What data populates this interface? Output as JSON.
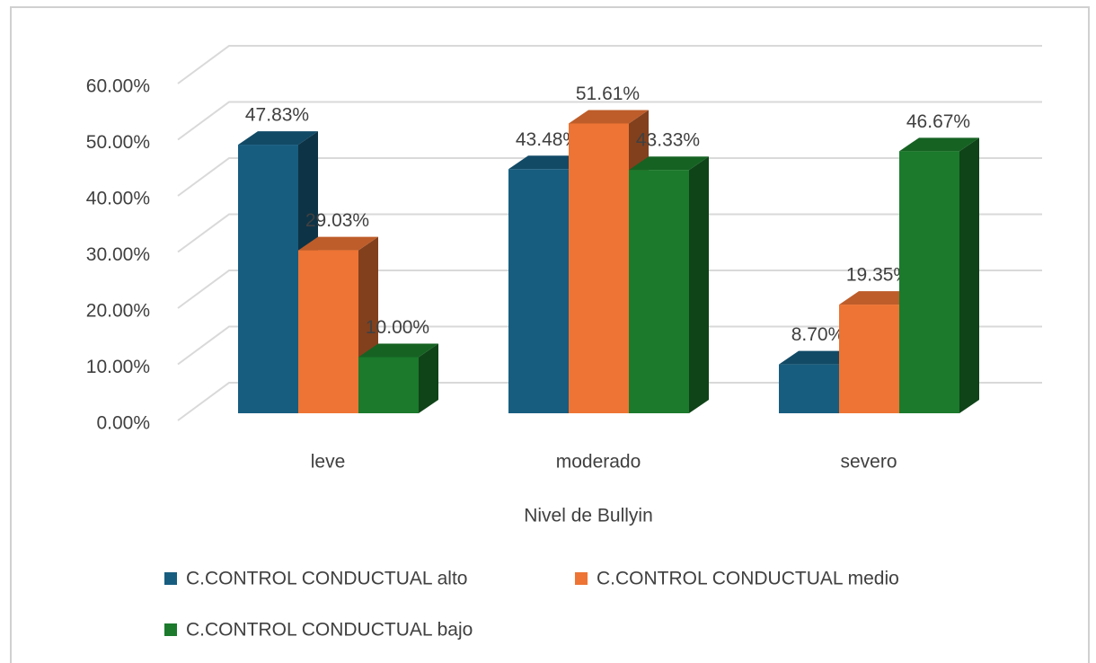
{
  "chart_data": {
    "type": "bar3d",
    "x_label": "Nivel de Bullyin",
    "categories": [
      "leve",
      "moderado",
      "severo"
    ],
    "series": [
      {
        "name": "C.CONTROL CONDUCTUAL alto",
        "color": "#175d80",
        "values": [
          47.83,
          43.48,
          8.7
        ],
        "value_labels": [
          "47.83%",
          "43.48%",
          "8.70%"
        ]
      },
      {
        "name": "C.CONTROL CONDUCTUAL medio",
        "color": "#ed7434",
        "values": [
          29.03,
          51.61,
          19.35
        ],
        "value_labels": [
          "29.03%",
          "51.61%",
          "19.35%"
        ]
      },
      {
        "name": "C.CONTROL CONDUCTUAL bajo",
        "color": "#1b7a2c",
        "values": [
          10.0,
          43.33,
          46.67
        ],
        "value_labels": [
          "10.00%",
          "43.33%",
          "46.67%"
        ]
      }
    ],
    "ylim": [
      0,
      60
    ],
    "yticks": [
      {
        "value": 0,
        "label": "0.00%"
      },
      {
        "value": 10,
        "label": "10.00%"
      },
      {
        "value": 20,
        "label": "20.00%"
      },
      {
        "value": 30,
        "label": "30.00%"
      },
      {
        "value": 40,
        "label": "40.00%"
      },
      {
        "value": 50,
        "label": "50.00%"
      },
      {
        "value": 60,
        "label": "60.00%"
      }
    ],
    "grid": true
  }
}
